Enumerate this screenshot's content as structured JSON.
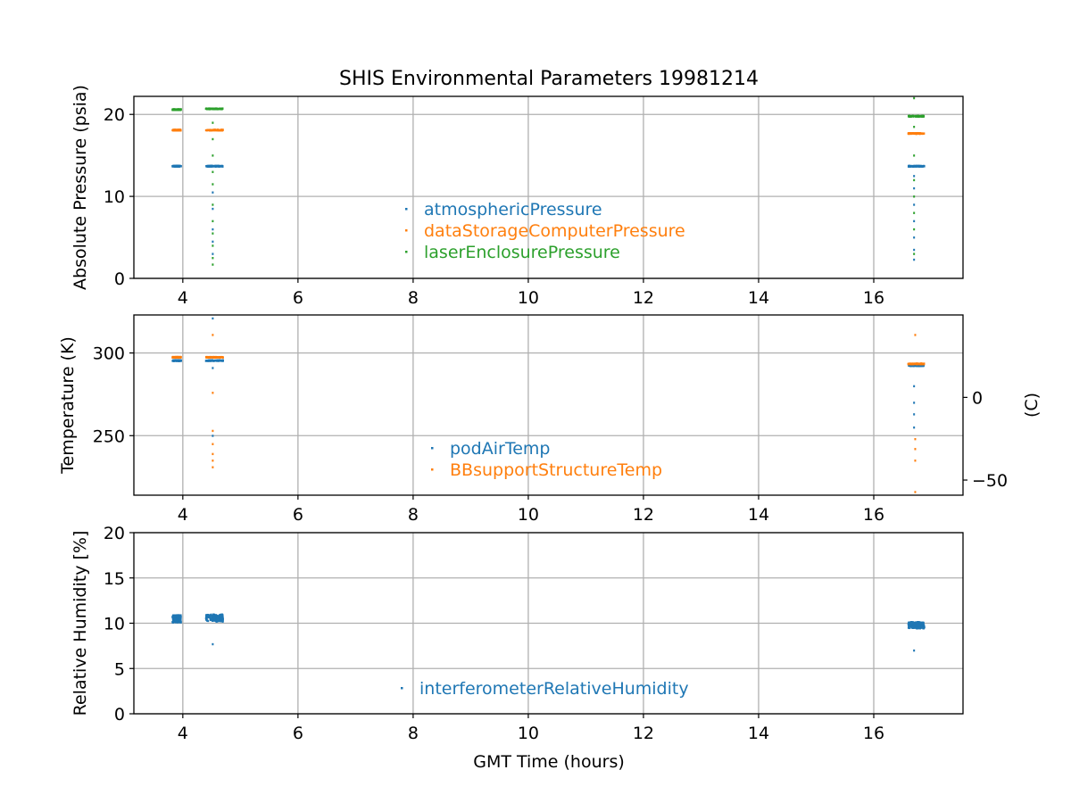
{
  "figure": {
    "title": "SHIS Environmental Parameters 19981214",
    "xlabel": "GMT Time (hours)"
  },
  "colors": {
    "blue": "#1f77b4",
    "orange": "#ff7f0e",
    "green": "#2ca02c",
    "grid": "#b0b0b0",
    "axis": "#000000"
  },
  "chart_data": [
    {
      "type": "scatter",
      "ylabel": "Absolute Pressure (psia)",
      "xlim": [
        3.15,
        17.55
      ],
      "ylim": [
        0,
        22.2
      ],
      "xticks": [
        4,
        6,
        8,
        10,
        12,
        14,
        16
      ],
      "yticks": [
        0,
        10,
        20
      ],
      "grid": true,
      "legend": "center",
      "series": [
        {
          "name": "atmosphericPressure",
          "color": "#1f77b4",
          "clusters": [
            {
              "x": [
                3.82,
                3.97
              ],
              "y": 13.7
            },
            {
              "x": [
                4.4,
                4.7
              ],
              "y": 13.7
            },
            {
              "x": [
                16.6,
                16.88
              ],
              "y": 13.7
            }
          ],
          "outliers": [
            {
              "x": 4.52,
              "y": 3.0
            },
            {
              "x": 4.52,
              "y": 4.5
            },
            {
              "x": 4.52,
              "y": 6.0
            },
            {
              "x": 4.52,
              "y": 8.5
            },
            {
              "x": 4.52,
              "y": 10.5
            },
            {
              "x": 16.7,
              "y": 2.3
            },
            {
              "x": 16.7,
              "y": 3.5
            },
            {
              "x": 16.7,
              "y": 5.0
            },
            {
              "x": 16.7,
              "y": 7.0
            },
            {
              "x": 16.7,
              "y": 9.0
            },
            {
              "x": 16.7,
              "y": 11.0
            },
            {
              "x": 16.7,
              "y": 12.5
            }
          ]
        },
        {
          "name": "dataStorageComputerPressure",
          "color": "#ff7f0e",
          "clusters": [
            {
              "x": [
                3.82,
                3.97
              ],
              "y": 18.1
            },
            {
              "x": [
                4.4,
                4.7
              ],
              "y": 18.1
            },
            {
              "x": [
                16.6,
                16.88
              ],
              "y": 17.7
            }
          ],
          "outliers": []
        },
        {
          "name": "laserEnclosurePressure",
          "color": "#2ca02c",
          "clusters": [
            {
              "x": [
                3.82,
                3.97
              ],
              "y": 20.6
            },
            {
              "x": [
                4.4,
                4.7
              ],
              "y": 20.7
            },
            {
              "x": [
                16.6,
                16.88
              ],
              "y": 19.8
            }
          ],
          "outliers": [
            {
              "x": 4.52,
              "y": 1.7
            },
            {
              "x": 4.52,
              "y": 2.5
            },
            {
              "x": 4.52,
              "y": 4.0
            },
            {
              "x": 4.52,
              "y": 5.5
            },
            {
              "x": 4.52,
              "y": 7.0
            },
            {
              "x": 4.52,
              "y": 9.0
            },
            {
              "x": 4.52,
              "y": 11.5
            },
            {
              "x": 4.52,
              "y": 13.0
            },
            {
              "x": 4.52,
              "y": 15.0
            },
            {
              "x": 4.52,
              "y": 17.0
            },
            {
              "x": 4.52,
              "y": 19.0
            },
            {
              "x": 16.7,
              "y": 3.0
            },
            {
              "x": 16.7,
              "y": 6.0
            },
            {
              "x": 16.7,
              "y": 8.0
            },
            {
              "x": 16.7,
              "y": 10.0
            },
            {
              "x": 16.7,
              "y": 12.0
            },
            {
              "x": 16.7,
              "y": 15.0
            },
            {
              "x": 16.7,
              "y": 18.5
            },
            {
              "x": 16.7,
              "y": 22.0
            }
          ]
        }
      ]
    },
    {
      "type": "scatter",
      "ylabel": "Temperature (K)",
      "y2label": "(C)",
      "xlim": [
        3.15,
        17.55
      ],
      "ylim": [
        214,
        323
      ],
      "xticks": [
        4,
        6,
        8,
        10,
        12,
        14,
        16
      ],
      "yticks": [
        250,
        300
      ],
      "y2ticks": [
        0,
        -50
      ],
      "y2offset": 273.15,
      "grid": true,
      "legend": "center",
      "series": [
        {
          "name": "podAirTemp",
          "color": "#1f77b4",
          "clusters": [
            {
              "x": [
                3.82,
                3.97
              ],
              "y": 295.5
            },
            {
              "x": [
                4.4,
                4.7
              ],
              "y": 295.5
            },
            {
              "x": [
                16.6,
                16.88
              ],
              "y": 292.5
            }
          ],
          "outliers": [
            {
              "x": 4.52,
              "y": 321
            },
            {
              "x": 4.52,
              "y": 291
            },
            {
              "x": 4.52,
              "y": 250
            },
            {
              "x": 16.7,
              "y": 280
            },
            {
              "x": 16.7,
              "y": 270
            },
            {
              "x": 16.7,
              "y": 263
            },
            {
              "x": 16.7,
              "y": 255
            }
          ]
        },
        {
          "name": "BBsupportStructureTemp",
          "color": "#ff7f0e",
          "clusters": [
            {
              "x": [
                3.82,
                3.97
              ],
              "y": 297.5
            },
            {
              "x": [
                4.4,
                4.7
              ],
              "y": 297.5
            },
            {
              "x": [
                16.6,
                16.88
              ],
              "y": 293.5
            }
          ],
          "outliers": [
            {
              "x": 4.52,
              "y": 311
            },
            {
              "x": 4.52,
              "y": 276
            },
            {
              "x": 4.52,
              "y": 253
            },
            {
              "x": 4.52,
              "y": 245
            },
            {
              "x": 4.52,
              "y": 239
            },
            {
              "x": 4.52,
              "y": 235
            },
            {
              "x": 4.52,
              "y": 231
            },
            {
              "x": 16.72,
              "y": 311
            },
            {
              "x": 16.72,
              "y": 248
            },
            {
              "x": 16.72,
              "y": 242
            },
            {
              "x": 16.72,
              "y": 235
            },
            {
              "x": 16.72,
              "y": 216
            }
          ]
        }
      ]
    },
    {
      "type": "scatter",
      "ylabel": "Relative Humidity [%]",
      "xlim": [
        3.15,
        17.55
      ],
      "ylim": [
        0,
        20
      ],
      "xticks": [
        4,
        6,
        8,
        10,
        12,
        14,
        16
      ],
      "yticks": [
        0,
        5,
        10,
        15,
        20
      ],
      "grid": true,
      "legend": "lower center",
      "series": [
        {
          "name": "interferometerRelativeHumidity",
          "color": "#1f77b4",
          "clusters": [
            {
              "x": [
                3.82,
                3.97
              ],
              "y": 10.5,
              "spread": 0.8
            },
            {
              "x": [
                4.4,
                4.7
              ],
              "y": 10.6,
              "spread": 0.8
            },
            {
              "x": [
                16.6,
                16.88
              ],
              "y": 9.8,
              "spread": 0.7
            }
          ],
          "outliers": [
            {
              "x": 4.52,
              "y": 7.7
            },
            {
              "x": 16.7,
              "y": 7.0
            }
          ]
        }
      ]
    }
  ]
}
